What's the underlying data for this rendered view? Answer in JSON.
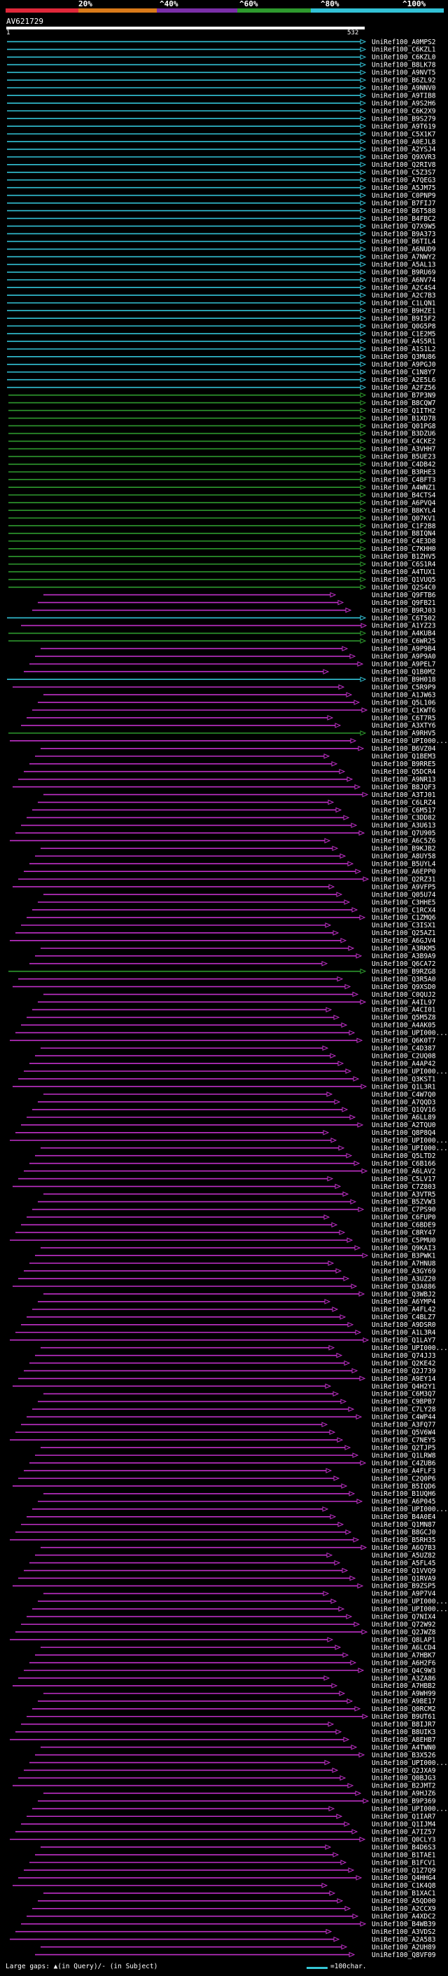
{
  "scale": {
    "labels": [
      "20%",
      "^40%",
      "^60%",
      "^80%",
      "^100%"
    ],
    "colors": [
      "#e0283a",
      "#d97a1a",
      "#7a2fa8",
      "#2e9a2e",
      "#33c2d6"
    ]
  },
  "query": {
    "title": "AV621729",
    "start": "1",
    "end": "532"
  },
  "hits": [
    {
      "id": "UniRef100_A0MPS2",
      "color": "#33c2d6"
    },
    {
      "id": "UniRef100_C6KZL1",
      "color": "#33c2d6"
    },
    {
      "id": "UniRef100_C6KZL0",
      "color": "#33c2d6"
    },
    {
      "id": "UniRef100_B8LK78",
      "color": "#33c2d6"
    },
    {
      "id": "UniRef100_A9NVT5",
      "color": "#33c2d6"
    },
    {
      "id": "UniRef100_B6ZL92",
      "color": "#33c2d6"
    },
    {
      "id": "UniRef100_A9NNV0",
      "color": "#33c2d6"
    },
    {
      "id": "UniRef100_A9TIB8",
      "color": "#33c2d6"
    },
    {
      "id": "UniRef100_A9S2H6",
      "color": "#33c2d6"
    },
    {
      "id": "UniRef100_C6K2X9",
      "color": "#33c2d6"
    },
    {
      "id": "UniRef100_B9S279",
      "color": "#33c2d6"
    },
    {
      "id": "UniRef100_A9T619",
      "color": "#33c2d6"
    },
    {
      "id": "UniRef100_C5X1K7",
      "color": "#33c2d6"
    },
    {
      "id": "UniRef100_A0EJL8",
      "color": "#33c2d6"
    },
    {
      "id": "UniRef100_A2YSJ4",
      "color": "#33c2d6"
    },
    {
      "id": "UniRef100_Q9XVR3",
      "color": "#33c2d6"
    },
    {
      "id": "UniRef100_Q2RIV8",
      "color": "#33c2d6"
    },
    {
      "id": "UniRef100_C5Z3S7",
      "color": "#33c2d6"
    },
    {
      "id": "UniRef100_A7QEG3",
      "color": "#33c2d6"
    },
    {
      "id": "UniRef100_A5JM75",
      "color": "#33c2d6"
    },
    {
      "id": "UniRef100_C0PNP9",
      "color": "#33c2d6"
    },
    {
      "id": "UniRef100_B7FIJ7",
      "color": "#33c2d6"
    },
    {
      "id": "UniRef100_B6T588",
      "color": "#33c2d6"
    },
    {
      "id": "UniRef100_B4FBC2",
      "color": "#33c2d6"
    },
    {
      "id": "UniRef100_Q7X9W5",
      "color": "#33c2d6"
    },
    {
      "id": "UniRef100_B9A373",
      "color": "#33c2d6"
    },
    {
      "id": "UniRef100_B6TIL4",
      "color": "#33c2d6"
    },
    {
      "id": "UniRef100_A6NUD9",
      "color": "#33c2d6"
    },
    {
      "id": "UniRef100_A7NWY2",
      "color": "#33c2d6"
    },
    {
      "id": "UniRef100_A5AL13",
      "color": "#33c2d6"
    },
    {
      "id": "UniRef100_B9RU69",
      "color": "#33c2d6"
    },
    {
      "id": "UniRef100_A6NV74",
      "color": "#33c2d6"
    },
    {
      "id": "UniRef100_A2C4S4",
      "color": "#33c2d6"
    },
    {
      "id": "UniRef100_A2C7B3",
      "color": "#33c2d6"
    },
    {
      "id": "UniRef100_C1LQN1",
      "color": "#33c2d6"
    },
    {
      "id": "UniRef100_B9HZE1",
      "color": "#33c2d6"
    },
    {
      "id": "UniRef100_B9I5F2",
      "color": "#33c2d6"
    },
    {
      "id": "UniRef100_Q0G5P8",
      "color": "#33c2d6"
    },
    {
      "id": "UniRef100_C1E2M5",
      "color": "#33c2d6"
    },
    {
      "id": "UniRef100_A4S5R1",
      "color": "#33c2d6"
    },
    {
      "id": "UniRef100_A1S1L2",
      "color": "#33c2d6"
    },
    {
      "id": "UniRef100_Q3MU86",
      "color": "#33c2d6"
    },
    {
      "id": "UniRef100_A9PGJ0",
      "color": "#33c2d6"
    },
    {
      "id": "UniRef100_C1N8Y7",
      "color": "#33c2d6"
    },
    {
      "id": "UniRef100_A2E5L6",
      "color": "#33c2d6"
    },
    {
      "id": "UniRef100_A2FZ56",
      "color": "#33c2d6"
    },
    {
      "id": "UniRef100_B7P3N9",
      "color": "#2e9a2e"
    },
    {
      "id": "UniRef100_B8CQW7",
      "color": "#2e9a2e"
    },
    {
      "id": "UniRef100_Q1ITH2",
      "color": "#2e9a2e"
    },
    {
      "id": "UniRef100_B1XD78",
      "color": "#2e9a2e"
    },
    {
      "id": "UniRef100_Q01PG8",
      "color": "#2e9a2e"
    },
    {
      "id": "UniRef100_B3DZU6",
      "color": "#2e9a2e"
    },
    {
      "id": "UniRef100_C4CKE2",
      "color": "#2e9a2e"
    },
    {
      "id": "UniRef100_A3VHH7",
      "color": "#2e9a2e"
    },
    {
      "id": "UniRef100_B5UE23",
      "color": "#2e9a2e"
    },
    {
      "id": "UniRef100_C4DB42",
      "color": "#2e9a2e"
    },
    {
      "id": "UniRef100_B3RHE3",
      "color": "#2e9a2e"
    },
    {
      "id": "UniRef100_C4BFT3",
      "color": "#2e9a2e"
    },
    {
      "id": "UniRef100_A4WNZ1",
      "color": "#2e9a2e"
    },
    {
      "id": "UniRef100_B4CTS4",
      "color": "#2e9a2e"
    },
    {
      "id": "UniRef100_A6PVQ4",
      "color": "#2e9a2e"
    },
    {
      "id": "UniRef100_B8KYL4",
      "color": "#2e9a2e"
    },
    {
      "id": "UniRef100_Q07KV1",
      "color": "#2e9a2e"
    },
    {
      "id": "UniRef100_C1F2B8",
      "color": "#2e9a2e"
    },
    {
      "id": "UniRef100_B8IQN4",
      "color": "#2e9a2e"
    },
    {
      "id": "UniRef100_C4E3D8",
      "color": "#2e9a2e"
    },
    {
      "id": "UniRef100_C7KHH0",
      "color": "#2e9a2e"
    },
    {
      "id": "UniRef100_B1ZHV5",
      "color": "#2e9a2e"
    },
    {
      "id": "UniRef100_C6S1R4",
      "color": "#2e9a2e"
    },
    {
      "id": "UniRef100_A4TUX1",
      "color": "#2e9a2e"
    },
    {
      "id": "UniRef100_Q1VUQ5",
      "color": "#2e9a2e"
    },
    {
      "id": "UniRef100_Q2S4C0",
      "color": "#2e9a2e"
    },
    {
      "id": "UniRef100_Q9FTB6",
      "color": "#c030c8"
    },
    {
      "id": "UniRef100_Q9FB21",
      "color": "#c030c8"
    },
    {
      "id": "UniRef100_B9RJ03",
      "color": "#c030c8"
    },
    {
      "id": "UniRef100_C6T502",
      "color": "#33c2d6"
    },
    {
      "id": "UniRef100_A1YZ23",
      "color": "#c030c8"
    },
    {
      "id": "UniRef100_A4KUB4",
      "color": "#2e9a2e"
    },
    {
      "id": "UniRef100_C6WR25",
      "color": "#2e9a2e"
    },
    {
      "id": "UniRef100_A9P9B4",
      "color": "#c030c8"
    },
    {
      "id": "UniRef100_A9P9A0",
      "color": "#c030c8"
    },
    {
      "id": "UniRef100_A9PEL7",
      "color": "#c030c8"
    },
    {
      "id": "UniRef100_Q1B0M2",
      "color": "#c030c8"
    },
    {
      "id": "UniRef100_B9H018",
      "color": "#33c2d6"
    },
    {
      "id": "UniRef100_C5R9P9",
      "color": "#c030c8"
    },
    {
      "id": "UniRef100_A1JW63",
      "color": "#c030c8"
    },
    {
      "id": "UniRef100_Q5L106",
      "color": "#c030c8"
    },
    {
      "id": "UniRef100_C1KWT6",
      "color": "#c030c8"
    },
    {
      "id": "UniRef100_C6T7R5",
      "color": "#c030c8"
    },
    {
      "id": "UniRef100_A3XTY6",
      "color": "#c030c8"
    },
    {
      "id": "UniRef100_A9RHV5",
      "color": "#2e9a2e"
    },
    {
      "id": "UniRef100_UPI000...",
      "color": "#c030c8"
    },
    {
      "id": "UniRef100_B6VZ04",
      "color": "#c030c8"
    },
    {
      "id": "UniRef100_Q1BEM3",
      "color": "#c030c8"
    },
    {
      "id": "UniRef100_B9RRE5",
      "color": "#c030c8"
    },
    {
      "id": "UniRef100_Q5DCR4",
      "color": "#c030c8"
    },
    {
      "id": "UniRef100_A9NR13",
      "color": "#c030c8"
    },
    {
      "id": "UniRef100_B8JQF3",
      "color": "#c030c8"
    },
    {
      "id": "UniRef100_A3TJ01",
      "color": "#c030c8"
    },
    {
      "id": "UniRef100_C6LRZ4",
      "color": "#c030c8"
    },
    {
      "id": "UniRef100_C6M517",
      "color": "#c030c8"
    },
    {
      "id": "UniRef100_C3DD82",
      "color": "#c030c8"
    },
    {
      "id": "UniRef100_A3U613",
      "color": "#c030c8"
    },
    {
      "id": "UniRef100_Q7U905",
      "color": "#c030c8"
    },
    {
      "id": "UniRef100_A6C5Z6",
      "color": "#c030c8"
    },
    {
      "id": "UniRef100_B9KJB2",
      "color": "#c030c8"
    },
    {
      "id": "UniRef100_A8UY58",
      "color": "#c030c8"
    },
    {
      "id": "UniRef100_B5UYL4",
      "color": "#c030c8"
    },
    {
      "id": "UniRef100_A6EPP0",
      "color": "#c030c8"
    },
    {
      "id": "UniRef100_Q2RZ31",
      "color": "#c030c8"
    },
    {
      "id": "UniRef100_A9VFP5",
      "color": "#c030c8"
    },
    {
      "id": "UniRef100_Q05U74",
      "color": "#c030c8"
    },
    {
      "id": "UniRef100_C3HHE5",
      "color": "#c030c8"
    },
    {
      "id": "UniRef100_C1RCX4",
      "color": "#c030c8"
    },
    {
      "id": "UniRef100_C1ZMQ6",
      "color": "#c030c8"
    },
    {
      "id": "UniRef100_C3ISX1",
      "color": "#c030c8"
    },
    {
      "id": "UniRef100_Q25AZ1",
      "color": "#c030c8"
    },
    {
      "id": "UniRef100_A6GJV4",
      "color": "#c030c8"
    },
    {
      "id": "UniRef100_A3RKM5",
      "color": "#c030c8"
    },
    {
      "id": "UniRef100_A3B9A9",
      "color": "#c030c8"
    },
    {
      "id": "UniRef100_Q6CA72",
      "color": "#c030c8"
    },
    {
      "id": "UniRef100_B9RZG8",
      "color": "#2e9a2e"
    },
    {
      "id": "UniRef100_Q3R5A0",
      "color": "#c030c8"
    },
    {
      "id": "UniRef100_Q9XSD0",
      "color": "#c030c8"
    },
    {
      "id": "UniRef100_C0QUJ2",
      "color": "#c030c8"
    },
    {
      "id": "UniRef100_A4IL97",
      "color": "#c030c8"
    },
    {
      "id": "UniRef100_A4CI01",
      "color": "#c030c8"
    },
    {
      "id": "UniRef100_Q5M5Z8",
      "color": "#c030c8"
    },
    {
      "id": "UniRef100_A4AK05",
      "color": "#c030c8"
    },
    {
      "id": "UniRef100_UPI000...",
      "color": "#c030c8"
    },
    {
      "id": "UniRef100_Q6K0T7",
      "color": "#c030c8"
    },
    {
      "id": "UniRef100_C4D387",
      "color": "#c030c8"
    },
    {
      "id": "UniRef100_C2UQ08",
      "color": "#c030c8"
    },
    {
      "id": "UniRef100_A4AP42",
      "color": "#c030c8"
    },
    {
      "id": "UniRef100_UPI000...",
      "color": "#c030c8"
    },
    {
      "id": "UniRef100_Q3KST1",
      "color": "#c030c8"
    },
    {
      "id": "UniRef100_Q1L3R1",
      "color": "#c030c8"
    },
    {
      "id": "UniRef100_C4W7Q0",
      "color": "#c030c8"
    },
    {
      "id": "UniRef100_A7QQD3",
      "color": "#c030c8"
    },
    {
      "id": "UniRef100_Q1QV16",
      "color": "#c030c8"
    },
    {
      "id": "UniRef100_A6LL89",
      "color": "#c030c8"
    },
    {
      "id": "UniRef100_A2TQU0",
      "color": "#c030c8"
    },
    {
      "id": "UniRef100_Q8P8Q4",
      "color": "#c030c8"
    },
    {
      "id": "UniRef100_UPI000...",
      "color": "#c030c8"
    },
    {
      "id": "UniRef100_UPI000...",
      "color": "#c030c8"
    },
    {
      "id": "UniRef100_Q5LTD2",
      "color": "#c030c8"
    },
    {
      "id": "UniRef100_C6B166",
      "color": "#c030c8"
    },
    {
      "id": "UniRef100_A6LAV2",
      "color": "#c030c8"
    },
    {
      "id": "UniRef100_C5LV17",
      "color": "#c030c8"
    },
    {
      "id": "UniRef100_C7Z803",
      "color": "#c030c8"
    },
    {
      "id": "UniRef100_A3VTR5",
      "color": "#c030c8"
    },
    {
      "id": "UniRef100_B5ZVW3",
      "color": "#c030c8"
    },
    {
      "id": "UniRef100_C7PS90",
      "color": "#c030c8"
    },
    {
      "id": "UniRef100_C6FUP0",
      "color": "#c030c8"
    },
    {
      "id": "UniRef100_C6BDE9",
      "color": "#c030c8"
    },
    {
      "id": "UniRef100_C8RY47",
      "color": "#c030c8"
    },
    {
      "id": "UniRef100_C5PMU0",
      "color": "#c030c8"
    },
    {
      "id": "UniRef100_Q9KAI3",
      "color": "#c030c8"
    },
    {
      "id": "UniRef100_B3PWK1",
      "color": "#c030c8"
    },
    {
      "id": "UniRef100_A7HNU8",
      "color": "#c030c8"
    },
    {
      "id": "UniRef100_A3GY69",
      "color": "#c030c8"
    },
    {
      "id": "UniRef100_A3UZ20",
      "color": "#c030c8"
    },
    {
      "id": "UniRef100_Q3A886",
      "color": "#c030c8"
    },
    {
      "id": "UniRef100_Q3WBJ2",
      "color": "#c030c8"
    },
    {
      "id": "UniRef100_A6YMP4",
      "color": "#c030c8"
    },
    {
      "id": "UniRef100_A4FL42",
      "color": "#c030c8"
    },
    {
      "id": "UniRef100_C4BLZ7",
      "color": "#c030c8"
    },
    {
      "id": "UniRef100_A9DSR0",
      "color": "#c030c8"
    },
    {
      "id": "UniRef100_A1L3R4",
      "color": "#c030c8"
    },
    {
      "id": "UniRef100_Q1LAY7",
      "color": "#c030c8"
    },
    {
      "id": "UniRef100_UPI000...",
      "color": "#c030c8"
    },
    {
      "id": "UniRef100_Q74JJ3",
      "color": "#c030c8"
    },
    {
      "id": "UniRef100_Q2KE42",
      "color": "#c030c8"
    },
    {
      "id": "UniRef100_Q2J739",
      "color": "#c030c8"
    },
    {
      "id": "UniRef100_A9EY14",
      "color": "#c030c8"
    },
    {
      "id": "UniRef100_Q4H2Y1",
      "color": "#c030c8"
    },
    {
      "id": "UniRef100_C6M3Q7",
      "color": "#c030c8"
    },
    {
      "id": "UniRef100_C9BPB7",
      "color": "#c030c8"
    },
    {
      "id": "UniRef100_C7LY28",
      "color": "#c030c8"
    },
    {
      "id": "UniRef100_C4WP44",
      "color": "#c030c8"
    },
    {
      "id": "UniRef100_A3FQ77",
      "color": "#c030c8"
    },
    {
      "id": "UniRef100_Q5V6W4",
      "color": "#c030c8"
    },
    {
      "id": "UniRef100_C7NEY5",
      "color": "#c030c8"
    },
    {
      "id": "UniRef100_Q2TJP5",
      "color": "#c030c8"
    },
    {
      "id": "UniRef100_Q1LRW8",
      "color": "#c030c8"
    },
    {
      "id": "UniRef100_C4ZUB6",
      "color": "#c030c8"
    },
    {
      "id": "UniRef100_A4FLF3",
      "color": "#c030c8"
    },
    {
      "id": "UniRef100_C2Q0P6",
      "color": "#c030c8"
    },
    {
      "id": "UniRef100_B5IQD6",
      "color": "#c030c8"
    },
    {
      "id": "UniRef100_B1UQH6",
      "color": "#c030c8"
    },
    {
      "id": "UniRef100_A6P045",
      "color": "#c030c8"
    },
    {
      "id": "UniRef100_UPI000...",
      "color": "#c030c8"
    },
    {
      "id": "UniRef100_B4A0E4",
      "color": "#c030c8"
    },
    {
      "id": "UniRef100_Q1MN87",
      "color": "#c030c8"
    },
    {
      "id": "UniRef100_B8GCJ0",
      "color": "#c030c8"
    },
    {
      "id": "UniRef100_B5RH35",
      "color": "#c030c8"
    },
    {
      "id": "UniRef100_A6Q7B3",
      "color": "#c030c8"
    },
    {
      "id": "UniRef100_A5UZ82",
      "color": "#c030c8"
    },
    {
      "id": "UniRef100_A5FL45",
      "color": "#c030c8"
    },
    {
      "id": "UniRef100_Q1VVQ9",
      "color": "#c030c8"
    },
    {
      "id": "UniRef100_Q1RVA9",
      "color": "#c030c8"
    },
    {
      "id": "UniRef100_B9ZSP5",
      "color": "#c030c8"
    },
    {
      "id": "UniRef100_A9P7V4",
      "color": "#c030c8"
    },
    {
      "id": "UniRef100_UPI000...",
      "color": "#c030c8"
    },
    {
      "id": "UniRef100_UPI000...",
      "color": "#c030c8"
    },
    {
      "id": "UniRef100_Q7NIX4",
      "color": "#c030c8"
    },
    {
      "id": "UniRef100_Q72W92",
      "color": "#c030c8"
    },
    {
      "id": "UniRef100_Q2JWZ8",
      "color": "#c030c8"
    },
    {
      "id": "UniRef100_Q8LAP1",
      "color": "#c030c8"
    },
    {
      "id": "UniRef100_A6LCD4",
      "color": "#c030c8"
    },
    {
      "id": "UniRef100_A7HBK7",
      "color": "#c030c8"
    },
    {
      "id": "UniRef100_A6H2F6",
      "color": "#c030c8"
    },
    {
      "id": "UniRef100_Q4C9W3",
      "color": "#c030c8"
    },
    {
      "id": "UniRef100_A3ZA86",
      "color": "#c030c8"
    },
    {
      "id": "UniRef100_A7HBB2",
      "color": "#c030c8"
    },
    {
      "id": "UniRef100_A9WH99",
      "color": "#c030c8"
    },
    {
      "id": "UniRef100_A9BE17",
      "color": "#c030c8"
    },
    {
      "id": "UniRef100_Q0RCM2",
      "color": "#c030c8"
    },
    {
      "id": "UniRef100_B9UT61",
      "color": "#c030c8"
    },
    {
      "id": "UniRef100_B8IJR7",
      "color": "#c030c8"
    },
    {
      "id": "UniRef100_B8UIK3",
      "color": "#c030c8"
    },
    {
      "id": "UniRef100_A8EHB7",
      "color": "#c030c8"
    },
    {
      "id": "UniRef100_A4TWN0",
      "color": "#c030c8"
    },
    {
      "id": "UniRef100_B3X526",
      "color": "#c030c8"
    },
    {
      "id": "UniRef100_UPI000...",
      "color": "#c030c8"
    },
    {
      "id": "UniRef100_Q2JXA9",
      "color": "#c030c8"
    },
    {
      "id": "UniRef100_Q0BJG3",
      "color": "#c030c8"
    },
    {
      "id": "UniRef100_B2JMT2",
      "color": "#c030c8"
    },
    {
      "id": "UniRef100_A9HJZ6",
      "color": "#c030c8"
    },
    {
      "id": "UniRef100_B9P369",
      "color": "#c030c8"
    },
    {
      "id": "UniRef100_UPI000...",
      "color": "#c030c8"
    },
    {
      "id": "UniRef100_Q1IAR7",
      "color": "#c030c8"
    },
    {
      "id": "UniRef100_Q1IJM4",
      "color": "#c030c8"
    },
    {
      "id": "UniRef100_A7IZ57",
      "color": "#c030c8"
    },
    {
      "id": "UniRef100_Q0CLY3",
      "color": "#c030c8"
    },
    {
      "id": "UniRef100_B4D6S3",
      "color": "#c030c8"
    },
    {
      "id": "UniRef100_B1TAE1",
      "color": "#c030c8"
    },
    {
      "id": "UniRef100_B1FCV1",
      "color": "#c030c8"
    },
    {
      "id": "UniRef100_Q1Z7Q9",
      "color": "#c030c8"
    },
    {
      "id": "UniRef100_Q4HHG4",
      "color": "#c030c8"
    },
    {
      "id": "UniRef100_C1K4Q8",
      "color": "#c030c8"
    },
    {
      "id": "UniRef100_B1XAC1",
      "color": "#c030c8"
    },
    {
      "id": "UniRef100_A5QD00",
      "color": "#c030c8"
    },
    {
      "id": "UniRef100_A2CCX9",
      "color": "#c030c8"
    },
    {
      "id": "UniRef100_A4XDC2",
      "color": "#c030c8"
    },
    {
      "id": "UniRef100_B4WB39",
      "color": "#c030c8"
    },
    {
      "id": "UniRef100_A3VDS2",
      "color": "#c030c8"
    },
    {
      "id": "UniRef100_A2A583",
      "color": "#c030c8"
    },
    {
      "id": "UniRef100_A2UH89",
      "color": "#c030c8"
    },
    {
      "id": "UniRef100_Q8VF09",
      "color": "#c030c8"
    }
  ],
  "footer": {
    "gaps_text": "Large gaps: ▲(in Query)/- (in Subject)",
    "legend_text": "=100char."
  }
}
